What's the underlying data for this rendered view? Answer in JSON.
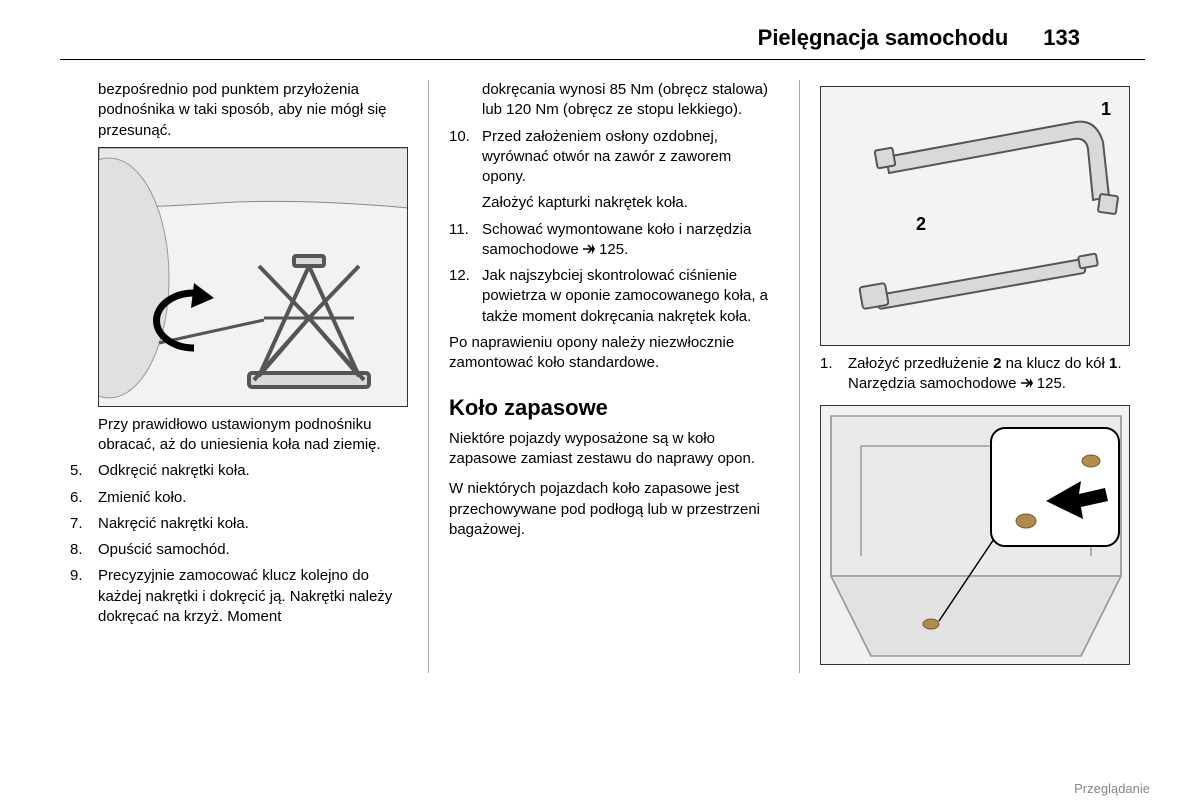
{
  "header": {
    "title": "Pielęgnacja samochodu",
    "page": "133"
  },
  "col1": {
    "intro": "bezpośrednio pod punktem przyłożenia podnośnika w taki sposób, aby nie mógł się przesunąć.",
    "after_fig": "Przy prawidłowo ustawionym podnośniku obracać, aż do uniesienia koła nad ziemię.",
    "items": [
      {
        "num": "5.",
        "text": "Odkręcić nakrętki koła."
      },
      {
        "num": "6.",
        "text": "Zmienić koło."
      },
      {
        "num": "7.",
        "text": "Nakręcić nakrętki koła."
      },
      {
        "num": "8.",
        "text": "Opuścić samochód."
      },
      {
        "num": "9.",
        "text": "Precyzyjnie zamocować klucz kolejno do każdej nakrętki i dokręcić ją. Nakrętki należy dokręcać na krzyż. Moment"
      }
    ]
  },
  "col2": {
    "cont9": "dokręcania wynosi 85 Nm (obręcz stalowa) lub 120 Nm (obręcz ze stopu lekkiego).",
    "items": [
      {
        "num": "10.",
        "text": "Przed założeniem osłony ozdobnej, wyrównać otwór na zawór z zaworem opony.",
        "extra": "Założyć kapturki nakrętek koła."
      },
      {
        "num": "11.",
        "text": "Schować wymontowane koło i narzędzia samochodowe",
        "ref": "125."
      },
      {
        "num": "12.",
        "text": "Jak najszybciej skontrolować ciśnienie powietrza w oponie zamocowanego koła, a także moment dokręcania nakrętek koła."
      }
    ],
    "para_after": "Po naprawieniu opony należy niezwłocznie zamontować koło standardowe.",
    "h2": "Koło zapasowe",
    "p1": "Niektóre pojazdy wyposażone są w koło zapasowe zamiast zestawu do naprawy opon.",
    "p2": "W niektórych pojazdach koło zapasowe jest przechowywane pod podłogą lub w przestrzeni bagażowej."
  },
  "col3": {
    "tool_labels": {
      "l1": "1",
      "l2": "2"
    },
    "step1_num": "1.",
    "step1_a": "Założyć przedłużenie ",
    "step1_bold1": "2",
    "step1_b": " na klucz do kół ",
    "step1_bold2": "1",
    "step1_c": ". Narzędzia samochodowe ",
    "step1_ref": "125."
  },
  "footer": "Przeglądanie",
  "colors": {
    "fig_bg": "#f4f4f4",
    "fig_stroke": "#333333",
    "arrow": "#000000"
  }
}
